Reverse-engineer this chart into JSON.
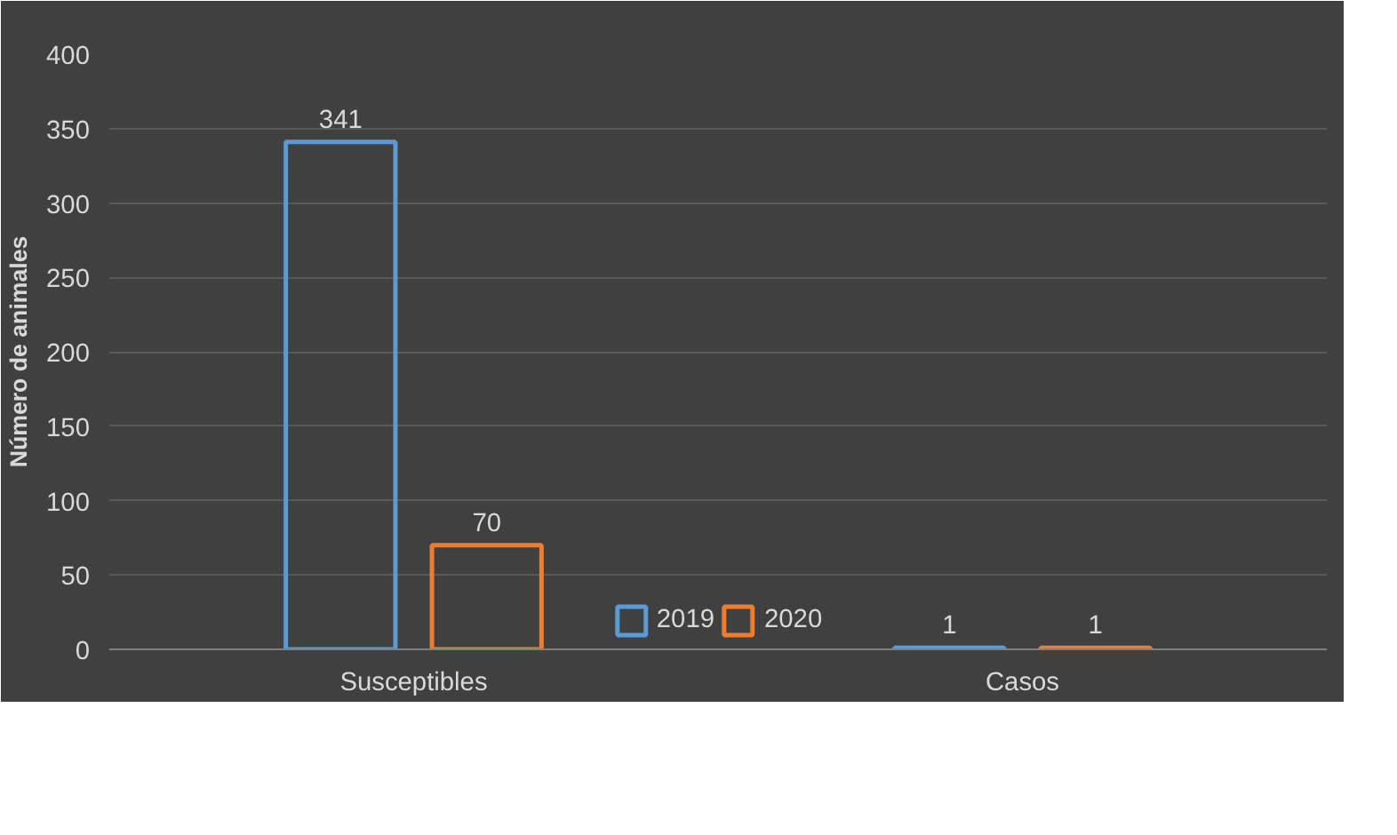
{
  "chart_data": {
    "type": "bar",
    "ylabel": "Número de animales",
    "categories": [
      "Susceptibles",
      "Casos"
    ],
    "series": [
      {
        "name": "2019",
        "color": "#5b9bd5",
        "values": [
          341,
          1
        ]
      },
      {
        "name": "2020",
        "color": "#ed7d31",
        "values": [
          70,
          1
        ]
      }
    ],
    "ylim": [
      0,
      400
    ],
    "yticks": [
      0,
      50,
      100,
      150,
      200,
      250,
      300,
      350,
      400
    ],
    "grid": "y",
    "legend": "bottom",
    "data_labels": true
  }
}
